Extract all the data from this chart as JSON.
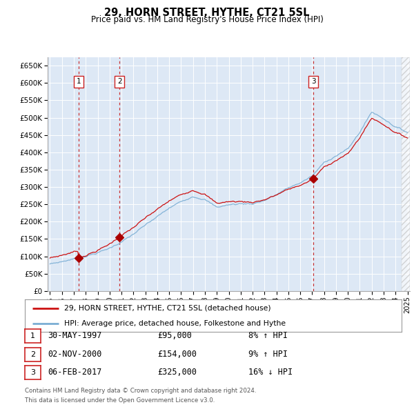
{
  "title": "29, HORN STREET, HYTHE, CT21 5SL",
  "subtitle": "Price paid vs. HM Land Registry's House Price Index (HPI)",
  "legend_line1": "29, HORN STREET, HYTHE, CT21 5SL (detached house)",
  "legend_line2": "HPI: Average price, detached house, Folkestone and Hythe",
  "footer1": "Contains HM Land Registry data © Crown copyright and database right 2024.",
  "footer2": "This data is licensed under the Open Government Licence v3.0.",
  "sales": [
    {
      "num": 1,
      "date_label": "30-MAY-1997",
      "price_label": "£95,000",
      "hpi_label": "8% ↑ HPI",
      "year": 1997.41,
      "price": 95000
    },
    {
      "num": 2,
      "date_label": "02-NOV-2000",
      "price_label": "£154,000",
      "hpi_label": "9% ↑ HPI",
      "year": 2000.83,
      "price": 154000
    },
    {
      "num": 3,
      "date_label": "06-FEB-2017",
      "price_label": "£325,000",
      "hpi_label": "16% ↓ HPI",
      "year": 2017.1,
      "price": 325000
    }
  ],
  "hpi_color": "#7aaed4",
  "price_color": "#cc1111",
  "sale_dot_color": "#aa0000",
  "vline_color": "#cc3333",
  "background_color": "#ffffff",
  "plot_bg": "#dde8f5",
  "grid_color": "#ffffff",
  "ylim": [
    0,
    675000
  ],
  "yticks": [
    0,
    50000,
    100000,
    150000,
    200000,
    250000,
    300000,
    350000,
    400000,
    450000,
    500000,
    550000,
    600000,
    650000
  ],
  "xlim_start": 1994.8,
  "xlim_end": 2025.2,
  "xticks": [
    1995,
    1996,
    1997,
    1998,
    1999,
    2000,
    2001,
    2002,
    2003,
    2004,
    2005,
    2006,
    2007,
    2008,
    2009,
    2010,
    2011,
    2012,
    2013,
    2014,
    2015,
    2016,
    2017,
    2018,
    2019,
    2020,
    2021,
    2022,
    2023,
    2024,
    2025
  ]
}
